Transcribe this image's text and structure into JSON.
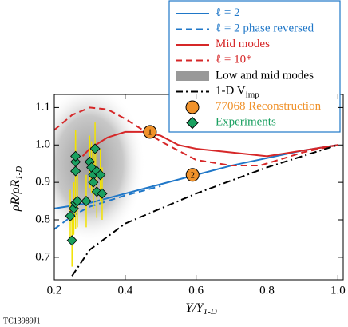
{
  "chart_data": {
    "type": "line",
    "xlabel": {
      "main": "Y/Y",
      "sub": "1-D"
    },
    "ylabel": {
      "main": "ρR/ρR",
      "sub": "1-D"
    },
    "footnote": "TC13989J1",
    "xlim": [
      0.2,
      1.015
    ],
    "ylim": [
      0.64,
      1.135
    ],
    "xticks": [
      0.2,
      0.4,
      0.6,
      0.8,
      {
        "value": 1,
        "label": "1.0"
      }
    ],
    "yticks": [
      0.7,
      0.8,
      0.9,
      {
        "value": 1,
        "label": "1.0"
      },
      1.1
    ],
    "shade_legend": "Low and mid modes",
    "series": [
      {
        "type": "line",
        "name": "ℓ = 2",
        "color": "#1f77c8",
        "style": "solid",
        "x": [
          0.2,
          0.3,
          0.4,
          0.5,
          0.6,
          0.7,
          0.8,
          0.9,
          1.0
        ],
        "values": [
          0.83,
          0.845,
          0.87,
          0.895,
          0.92,
          0.945,
          0.965,
          0.985,
          1.0
        ]
      },
      {
        "type": "line",
        "name": "ℓ = 2 phase reversed",
        "color": "#1f77c8",
        "style": "dashed",
        "x": [
          0.2,
          0.25,
          0.3,
          0.4,
          0.5
        ],
        "values": [
          0.775,
          0.81,
          0.835,
          0.865,
          0.89
        ]
      },
      {
        "type": "line",
        "name": "Mid modes",
        "color": "#d62728",
        "style": "solid",
        "x": [
          0.28,
          0.3,
          0.35,
          0.4,
          0.45,
          0.5,
          0.55,
          0.6,
          0.7,
          0.8,
          0.9,
          1.0
        ],
        "values": [
          0.97,
          0.99,
          1.02,
          1.035,
          1.035,
          1.025,
          1.0,
          0.99,
          0.98,
          0.97,
          0.985,
          1.0
        ]
      },
      {
        "type": "line",
        "name": "ℓ = 10*",
        "color": "#d62728",
        "style": "dashed",
        "x": [
          0.2,
          0.25,
          0.3,
          0.35,
          0.4,
          0.5,
          0.6,
          0.7,
          0.78,
          0.85,
          0.9,
          1.0
        ],
        "values": [
          1.04,
          1.08,
          1.1,
          1.095,
          1.07,
          1.01,
          0.96,
          0.945,
          0.945,
          0.965,
          0.98,
          1.0
        ]
      },
      {
        "type": "line",
        "name": "1-D V",
        "name_sub": "imp",
        "color": "#000000",
        "style": "dashdot",
        "x": [
          0.25,
          0.3,
          0.4,
          0.5,
          0.6,
          0.7,
          0.8,
          0.9,
          1.0
        ],
        "values": [
          0.65,
          0.72,
          0.79,
          0.83,
          0.87,
          0.905,
          0.94,
          0.97,
          1.0
        ]
      },
      {
        "type": "scatter",
        "marker": "circle",
        "name": "77068 Reconstruction",
        "color": "#f0922b",
        "x": [
          0.47,
          0.59
        ],
        "values": [
          1.035,
          0.92
        ],
        "labels": [
          "1",
          "2"
        ]
      },
      {
        "type": "scatter",
        "marker": "diamond",
        "name": "Experiments",
        "color": "#1aa060",
        "errcolor": "#f2e200",
        "x": [
          0.25,
          0.245,
          0.255,
          0.26,
          0.265,
          0.26,
          0.26,
          0.26,
          0.3,
          0.305,
          0.31,
          0.31,
          0.32,
          0.32,
          0.315,
          0.33,
          0.335,
          0.29
        ],
        "values": [
          0.745,
          0.81,
          0.83,
          0.845,
          0.85,
          0.93,
          0.955,
          0.97,
          0.955,
          0.94,
          0.92,
          0.9,
          0.875,
          0.93,
          0.99,
          0.92,
          0.87,
          0.85
        ],
        "errors": [
          0.07,
          0.07,
          0.07,
          0.07,
          0.07,
          0.07,
          0.07,
          0.07,
          0.07,
          0.07,
          0.07,
          0.07,
          0.07,
          0.07,
          0.07,
          0.07,
          0.07,
          0.07
        ]
      }
    ]
  }
}
